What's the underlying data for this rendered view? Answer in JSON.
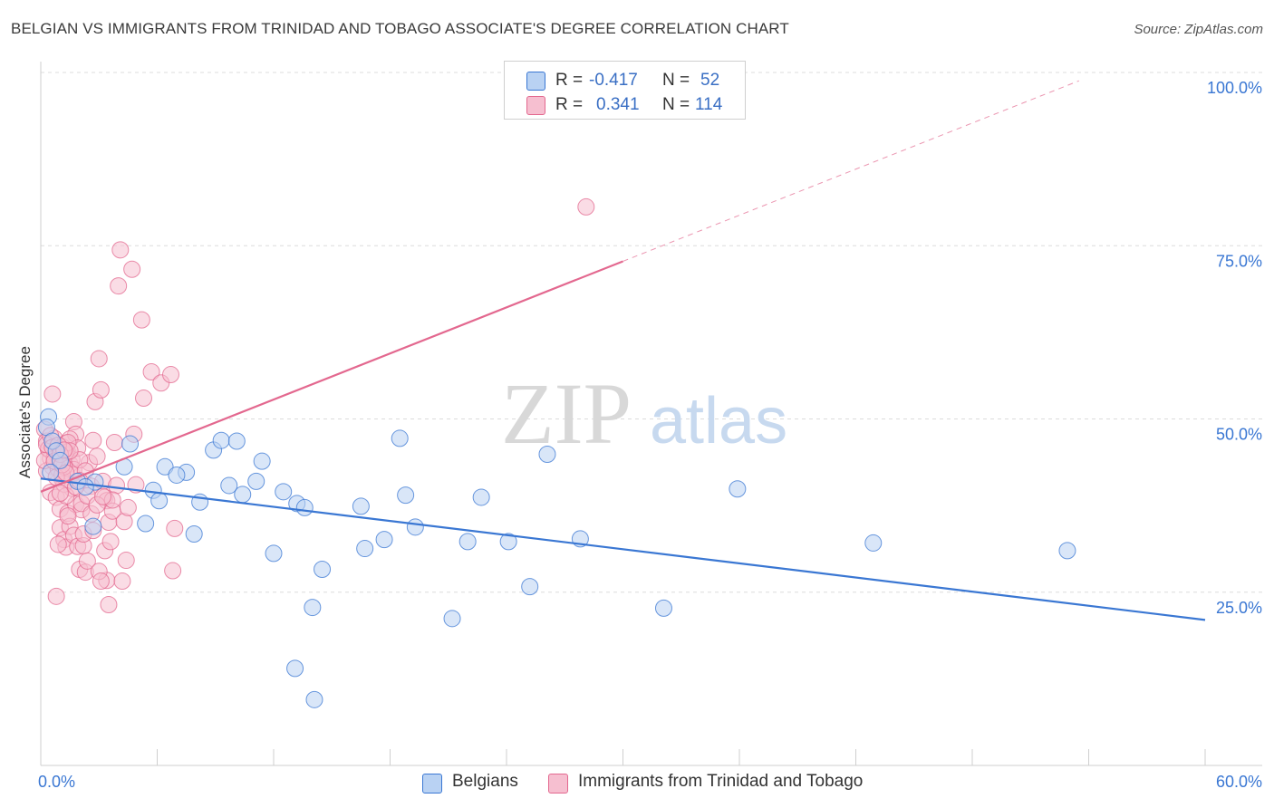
{
  "title": "BELGIAN VS IMMIGRANTS FROM TRINIDAD AND TOBAGO ASSOCIATE'S DEGREE CORRELATION CHART",
  "source": "Source: ZipAtlas.com",
  "watermark": {
    "zip": "ZIP",
    "atlas": "atlas"
  },
  "colors": {
    "blue": "#3a77d3",
    "blue_fill": "#b9d2f3",
    "pink": "#e3688f",
    "pink_fill": "#f6bfd0",
    "axis_text": "#3a77d3"
  },
  "legend": {
    "rows": [
      {
        "r_label": "R =",
        "r_value": "-0.417",
        "n_label": "N =",
        "n_value": "52"
      },
      {
        "r_label": "R =",
        "r_value": "0.341",
        "n_label": "N =",
        "n_value": "114"
      }
    ]
  },
  "bottom_legend": [
    "Belgians",
    "Immigrants from Trinidad and Tobago"
  ],
  "axes": {
    "ylabel": "Associate's Degree",
    "x_min_label": "0.0%",
    "x_max_label": "60.0%",
    "y_tick_labels": [
      "100.0%",
      "75.0%",
      "50.0%",
      "25.0%"
    ]
  },
  "chart_data": {
    "type": "scatter",
    "xlabel": "",
    "ylabel": "Associate's Degree",
    "xlim": [
      0,
      60
    ],
    "ylim": [
      0,
      100
    ],
    "y_ticks": [
      25,
      50,
      75,
      100
    ],
    "grid": true,
    "legend_placement": "top-center",
    "series": [
      {
        "name": "Belgians",
        "color": "#3a77d3",
        "r": -0.417,
        "n": 52,
        "trend": {
          "x": [
            0,
            60
          ],
          "y": [
            41.4,
            21.0
          ],
          "dashed_from": null
        },
        "points": [
          [
            0.4,
            50.3
          ],
          [
            0.3,
            48.8
          ],
          [
            0.6,
            46.8
          ],
          [
            0.8,
            45.4
          ],
          [
            1.0,
            44.0
          ],
          [
            0.5,
            42.3
          ],
          [
            1.9,
            41.0
          ],
          [
            2.8,
            40.9
          ],
          [
            2.3,
            40.2
          ],
          [
            4.6,
            46.4
          ],
          [
            4.3,
            43.1
          ],
          [
            6.4,
            43.1
          ],
          [
            5.8,
            39.7
          ],
          [
            6.1,
            38.2
          ],
          [
            5.4,
            34.9
          ],
          [
            7.5,
            42.3
          ],
          [
            7.0,
            41.9
          ],
          [
            8.2,
            38.0
          ],
          [
            7.9,
            33.4
          ],
          [
            8.9,
            45.5
          ],
          [
            9.3,
            46.9
          ],
          [
            10.1,
            46.8
          ],
          [
            9.7,
            40.4
          ],
          [
            10.4,
            39.1
          ],
          [
            11.1,
            41.0
          ],
          [
            11.4,
            43.9
          ],
          [
            12.0,
            30.6
          ],
          [
            12.5,
            39.5
          ],
          [
            13.2,
            37.8
          ],
          [
            13.6,
            37.2
          ],
          [
            14.5,
            28.3
          ],
          [
            14.0,
            22.8
          ],
          [
            13.1,
            14.0
          ],
          [
            14.1,
            9.5
          ],
          [
            16.5,
            37.4
          ],
          [
            16.7,
            31.3
          ],
          [
            17.7,
            32.6
          ],
          [
            18.5,
            47.2
          ],
          [
            18.8,
            39.0
          ],
          [
            19.3,
            34.4
          ],
          [
            21.2,
            21.2
          ],
          [
            22.0,
            32.3
          ],
          [
            22.7,
            38.7
          ],
          [
            24.1,
            32.3
          ],
          [
            25.2,
            25.8
          ],
          [
            26.1,
            44.9
          ],
          [
            27.8,
            32.7
          ],
          [
            32.1,
            22.7
          ],
          [
            35.9,
            39.9
          ],
          [
            42.9,
            32.1
          ],
          [
            52.9,
            31.0
          ],
          [
            2.7,
            34.5
          ]
        ]
      },
      {
        "name": "Immigrants from Trinidad and Tobago",
        "color": "#e3688f",
        "r": 0.341,
        "n": 114,
        "trend": {
          "x": [
            0,
            60
          ],
          "y": [
            39.5,
            106.0
          ],
          "dashed_from": 30
        },
        "points": [
          [
            0.2,
            48.5
          ],
          [
            0.3,
            46.8
          ],
          [
            0.4,
            45.6
          ],
          [
            0.5,
            44.3
          ],
          [
            0.6,
            43.1
          ],
          [
            0.3,
            42.5
          ],
          [
            0.7,
            47.2
          ],
          [
            0.8,
            45.0
          ],
          [
            0.9,
            43.7
          ],
          [
            0.5,
            39.4
          ],
          [
            0.8,
            38.7
          ],
          [
            1.0,
            37.0
          ],
          [
            1.1,
            41.3
          ],
          [
            1.2,
            44.8
          ],
          [
            1.3,
            46.5
          ],
          [
            1.4,
            45.1
          ],
          [
            1.5,
            43.5
          ],
          [
            1.6,
            42.0
          ],
          [
            1.7,
            49.6
          ],
          [
            1.8,
            47.8
          ],
          [
            0.6,
            53.6
          ],
          [
            1.0,
            34.3
          ],
          [
            1.2,
            32.6
          ],
          [
            1.3,
            31.5
          ],
          [
            1.4,
            36.4
          ],
          [
            1.5,
            34.5
          ],
          [
            1.6,
            40.0
          ],
          [
            1.7,
            33.2
          ],
          [
            1.8,
            37.7
          ],
          [
            1.9,
            31.6
          ],
          [
            2.0,
            28.3
          ],
          [
            2.1,
            36.9
          ],
          [
            2.2,
            31.7
          ],
          [
            2.3,
            27.9
          ],
          [
            2.4,
            29.5
          ],
          [
            2.5,
            43.7
          ],
          [
            2.6,
            40.3
          ],
          [
            2.7,
            46.9
          ],
          [
            2.8,
            52.5
          ],
          [
            2.9,
            44.6
          ],
          [
            3.0,
            58.7
          ],
          [
            3.1,
            54.2
          ],
          [
            3.2,
            41.0
          ],
          [
            3.3,
            38.7
          ],
          [
            3.4,
            38.2
          ],
          [
            3.5,
            35.1
          ],
          [
            3.3,
            31.0
          ],
          [
            3.4,
            26.7
          ],
          [
            3.5,
            23.2
          ],
          [
            3.7,
            36.7
          ],
          [
            3.8,
            46.6
          ],
          [
            3.9,
            40.4
          ],
          [
            4.0,
            69.2
          ],
          [
            4.1,
            74.4
          ],
          [
            4.2,
            26.6
          ],
          [
            4.3,
            35.2
          ],
          [
            4.4,
            29.6
          ],
          [
            4.5,
            37.2
          ],
          [
            4.7,
            71.6
          ],
          [
            4.8,
            47.8
          ],
          [
            4.9,
            40.5
          ],
          [
            5.2,
            64.3
          ],
          [
            5.3,
            53.0
          ],
          [
            5.7,
            56.8
          ],
          [
            6.2,
            55.2
          ],
          [
            6.7,
            56.4
          ],
          [
            6.9,
            34.2
          ],
          [
            6.8,
            28.1
          ],
          [
            28.1,
            80.6
          ],
          [
            0.4,
            45.7
          ],
          [
            0.7,
            44.4
          ],
          [
            0.9,
            42.8
          ],
          [
            1.1,
            46.0
          ],
          [
            1.2,
            40.6
          ],
          [
            1.3,
            38.9
          ],
          [
            1.4,
            36.0
          ],
          [
            1.5,
            47.1
          ],
          [
            1.6,
            44.2
          ],
          [
            1.7,
            42.7
          ],
          [
            1.9,
            45.8
          ],
          [
            2.0,
            44.1
          ],
          [
            2.1,
            37.8
          ],
          [
            2.2,
            33.4
          ],
          [
            2.4,
            38.9
          ],
          [
            2.6,
            36.3
          ],
          [
            2.7,
            33.9
          ],
          [
            3.0,
            28.0
          ],
          [
            3.1,
            26.6
          ],
          [
            3.6,
            32.3
          ],
          [
            3.7,
            38.3
          ],
          [
            0.8,
            24.4
          ],
          [
            0.9,
            31.9
          ],
          [
            1.0,
            39.3
          ],
          [
            1.1,
            41.9
          ],
          [
            1.2,
            43.1
          ],
          [
            1.3,
            45.2
          ],
          [
            1.4,
            46.6
          ],
          [
            1.5,
            45.4
          ],
          [
            1.8,
            40.2
          ],
          [
            2.3,
            42.5
          ],
          [
            2.9,
            37.6
          ],
          [
            3.2,
            38.8
          ],
          [
            0.2,
            44.0
          ],
          [
            0.3,
            46.3
          ],
          [
            0.5,
            47.6
          ],
          [
            0.6,
            45.9
          ],
          [
            0.7,
            43.9
          ],
          [
            0.8,
            41.6
          ],
          [
            0.9,
            46.2
          ],
          [
            1.0,
            44.9
          ],
          [
            1.1,
            43.4
          ],
          [
            1.2,
            45.5
          ],
          [
            1.3,
            42.2
          ],
          [
            2.0,
            41.1
          ]
        ]
      }
    ]
  }
}
